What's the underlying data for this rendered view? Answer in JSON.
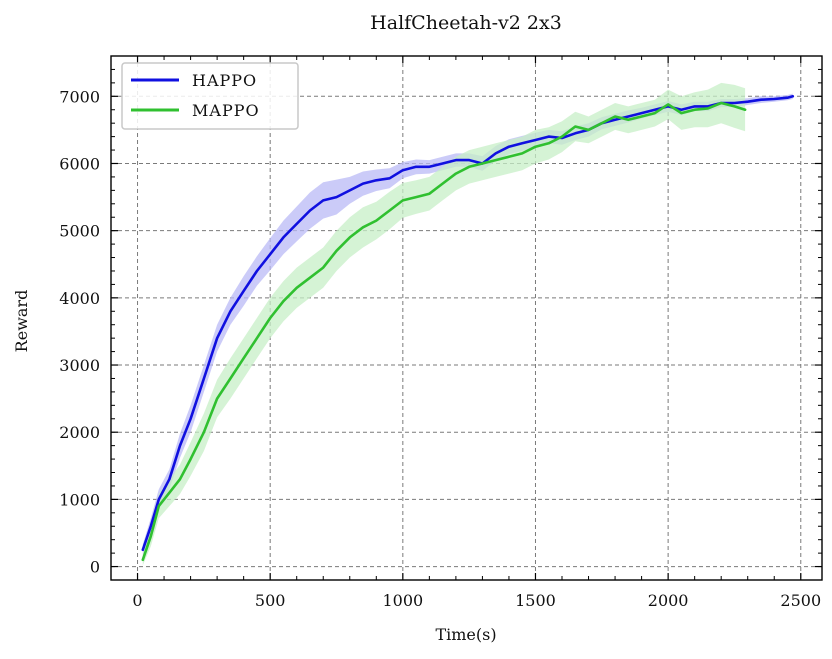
{
  "chart_data": {
    "type": "line",
    "title": "HalfCheetah-v2 2x3",
    "xlabel": "Time(s)",
    "ylabel": "Reward",
    "xlim": [
      -100,
      2580
    ],
    "ylim": [
      -200,
      7600
    ],
    "xticks": [
      0,
      500,
      1000,
      1500,
      2000,
      2500
    ],
    "yticks": [
      0,
      1000,
      2000,
      3000,
      4000,
      5000,
      6000,
      7000
    ],
    "grid": true,
    "legend_position": "top-left",
    "series": [
      {
        "name": "HAPPO",
        "color": "#1010e0",
        "band_color": "#b9b9f5",
        "x": [
          20,
          50,
          80,
          120,
          160,
          200,
          250,
          300,
          350,
          400,
          450,
          500,
          550,
          600,
          650,
          700,
          750,
          800,
          850,
          900,
          950,
          1000,
          1050,
          1100,
          1150,
          1200,
          1250,
          1300,
          1350,
          1400,
          1450,
          1500,
          1550,
          1600,
          1650,
          1700,
          1750,
          1800,
          1850,
          1900,
          1950,
          2000,
          2050,
          2100,
          2150,
          2200,
          2250,
          2300,
          2350,
          2400,
          2450,
          2470
        ],
        "values": [
          250,
          600,
          1000,
          1300,
          1800,
          2200,
          2800,
          3400,
          3800,
          4100,
          4400,
          4650,
          4900,
          5100,
          5300,
          5450,
          5500,
          5600,
          5700,
          5750,
          5780,
          5900,
          5950,
          5950,
          6000,
          6050,
          6050,
          6000,
          6150,
          6250,
          6300,
          6350,
          6400,
          6380,
          6450,
          6500,
          6600,
          6650,
          6700,
          6750,
          6800,
          6850,
          6800,
          6850,
          6850,
          6900,
          6900,
          6920,
          6950,
          6960,
          6980,
          7000
        ],
        "std": [
          80,
          120,
          150,
          150,
          180,
          200,
          200,
          200,
          200,
          220,
          220,
          240,
          250,
          260,
          270,
          270,
          260,
          200,
          180,
          160,
          150,
          120,
          110,
          100,
          100,
          100,
          100,
          110,
          110,
          110,
          110,
          110,
          100,
          100,
          100,
          100,
          90,
          90,
          90,
          80,
          80,
          80,
          80,
          70,
          70,
          60,
          60,
          50,
          50,
          40,
          40,
          40
        ]
      },
      {
        "name": "MAPPO",
        "color": "#30c030",
        "band_color": "#c7efc7",
        "x": [
          20,
          50,
          80,
          120,
          160,
          200,
          250,
          300,
          350,
          400,
          450,
          500,
          550,
          600,
          650,
          700,
          750,
          800,
          850,
          900,
          950,
          1000,
          1050,
          1100,
          1150,
          1200,
          1250,
          1300,
          1350,
          1400,
          1450,
          1500,
          1550,
          1600,
          1650,
          1700,
          1750,
          1800,
          1850,
          1900,
          1950,
          2000,
          2050,
          2100,
          2150,
          2200,
          2250,
          2290
        ],
        "values": [
          100,
          450,
          900,
          1100,
          1300,
          1600,
          2000,
          2500,
          2800,
          3100,
          3400,
          3700,
          3950,
          4150,
          4300,
          4450,
          4700,
          4900,
          5050,
          5150,
          5300,
          5450,
          5500,
          5550,
          5700,
          5850,
          5950,
          6000,
          6050,
          6100,
          6150,
          6250,
          6300,
          6400,
          6550,
          6500,
          6600,
          6700,
          6650,
          6700,
          6750,
          6880,
          6750,
          6800,
          6820,
          6900,
          6850,
          6800
        ],
        "std": [
          80,
          150,
          180,
          200,
          220,
          250,
          280,
          280,
          300,
          300,
          300,
          300,
          300,
          300,
          300,
          300,
          300,
          300,
          300,
          280,
          280,
          260,
          250,
          250,
          250,
          250,
          250,
          250,
          250,
          250,
          250,
          250,
          240,
          230,
          220,
          200,
          200,
          200,
          200,
          200,
          200,
          220,
          250,
          260,
          280,
          300,
          320,
          320
        ]
      }
    ]
  }
}
